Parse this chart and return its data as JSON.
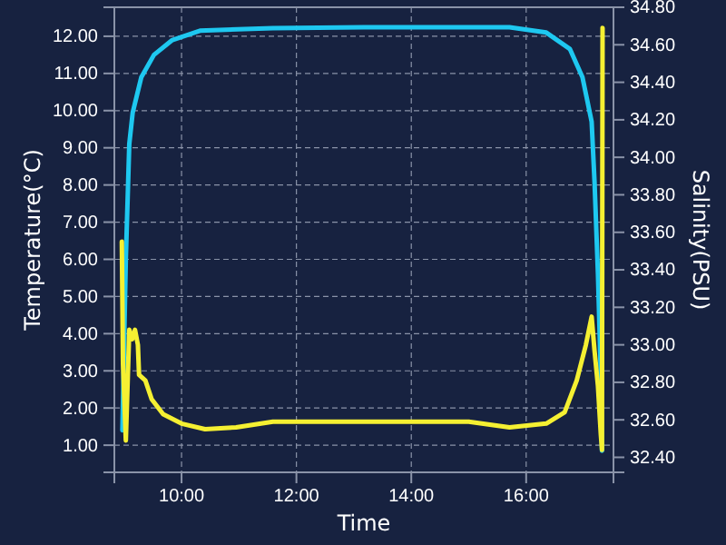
{
  "chart_data": {
    "type": "line",
    "xlabel": "Time",
    "ylabel": "Temperature(°C)",
    "y2label": "Salinity(PSU)",
    "xlim": [
      8.83,
      17.52
    ],
    "xticks": [
      {
        "value": 10,
        "label": "10:00"
      },
      {
        "value": 12,
        "label": "12:00"
      },
      {
        "value": 14,
        "label": "14:00"
      },
      {
        "value": 16,
        "label": "16:00"
      }
    ],
    "ylim": [
      0.27,
      12.78
    ],
    "yticks": [
      {
        "value": 1,
        "label": "1.00"
      },
      {
        "value": 2,
        "label": "2.00"
      },
      {
        "value": 3,
        "label": "3.00"
      },
      {
        "value": 4,
        "label": "4.00"
      },
      {
        "value": 5,
        "label": "5.00"
      },
      {
        "value": 6,
        "label": "6.00"
      },
      {
        "value": 7,
        "label": "7.00"
      },
      {
        "value": 8,
        "label": "8.00"
      },
      {
        "value": 9,
        "label": "9.00"
      },
      {
        "value": 10,
        "label": "10.00"
      },
      {
        "value": 11,
        "label": "11.00"
      },
      {
        "value": 12,
        "label": "12.00"
      }
    ],
    "y2lim": [
      32.32,
      34.8
    ],
    "y2ticks": [
      {
        "value": 32.4,
        "label": "32.40"
      },
      {
        "value": 32.6,
        "label": "32.60"
      },
      {
        "value": 32.8,
        "label": "32.80"
      },
      {
        "value": 33,
        "label": "33.00"
      },
      {
        "value": 33.2,
        "label": "33.20"
      },
      {
        "value": 33.4,
        "label": "33.40"
      },
      {
        "value": 33.6,
        "label": "33.60"
      },
      {
        "value": 33.8,
        "label": "33.80"
      },
      {
        "value": 34,
        "label": "34.00"
      },
      {
        "value": 34.2,
        "label": "34.20"
      },
      {
        "value": 34.4,
        "label": "34.40"
      },
      {
        "value": 34.6,
        "label": "34.60"
      },
      {
        "value": 34.8,
        "label": "34.80"
      }
    ],
    "grid": true,
    "line_style": "solid",
    "marker": "none",
    "series": [
      {
        "color": "#1ec8f0",
        "x": [
          8.97,
          9.03,
          9.09,
          9.15,
          9.3,
          9.52,
          9.84,
          10.32,
          11.59,
          13.17,
          15.71,
          16.35,
          16.76,
          16.98,
          17.14,
          17.19,
          17.25,
          17.3,
          17.32
        ],
        "values": [
          1.4,
          6,
          9.1,
          9.95,
          10.9,
          11.5,
          11.9,
          12.15,
          12.22,
          12.24,
          12.24,
          12.1,
          11.66,
          10.9,
          9.7,
          8.1,
          5.6,
          2.85,
          0.85
        ]
      },
      {
        "color": "#f5f032",
        "axis": "y2",
        "x": [
          8.96,
          8.98,
          9.03,
          9.09,
          9.14,
          9.19,
          9.24,
          9.26,
          9.37,
          9.48,
          9.68,
          10,
          10.41,
          10.95,
          11.59,
          13.17,
          15,
          15.71,
          16.35,
          16.67,
          16.88,
          17.04,
          17.14,
          17.19,
          17.25,
          17.3,
          17.32,
          17.33
        ],
        "values": [
          33.55,
          32.9,
          32.49,
          33.08,
          33.03,
          33.08,
          33,
          32.84,
          32.81,
          32.71,
          32.63,
          32.58,
          32.55,
          32.56,
          32.59,
          32.59,
          32.59,
          32.56,
          32.58,
          32.64,
          32.81,
          33,
          33.15,
          32.97,
          32.78,
          32.52,
          32.44,
          34.69
        ]
      }
    ]
  }
}
